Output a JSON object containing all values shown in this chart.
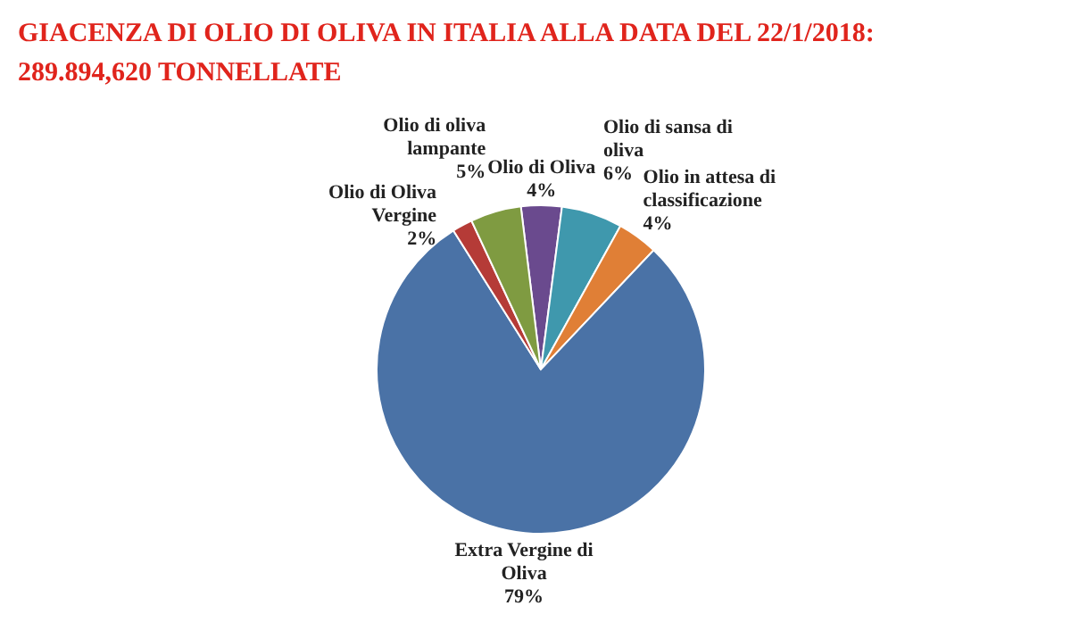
{
  "chart_data": {
    "type": "pie",
    "title": "GIACENZA DI OLIO DI OLIVA IN ITALIA ALLA DATA DEL 22/1/2018:",
    "subtitle": "289.894,620 TONNELLATE",
    "categories": [
      "Olio di Oliva",
      "Olio di sansa di oliva",
      "Olio in attesa di classificazione",
      "Extra Vergine di Oliva",
      "Olio di Oliva Vergine",
      "Olio di oliva lampante"
    ],
    "values": [
      4,
      6,
      4,
      79,
      2,
      5
    ],
    "colors": [
      "#6a4a8e",
      "#3f98ad",
      "#e07f36",
      "#4a72a6",
      "#b53b37",
      "#7f9b41"
    ],
    "value_labels": [
      "4%",
      "6%",
      "4%",
      "79%",
      "2%",
      "5%"
    ]
  }
}
